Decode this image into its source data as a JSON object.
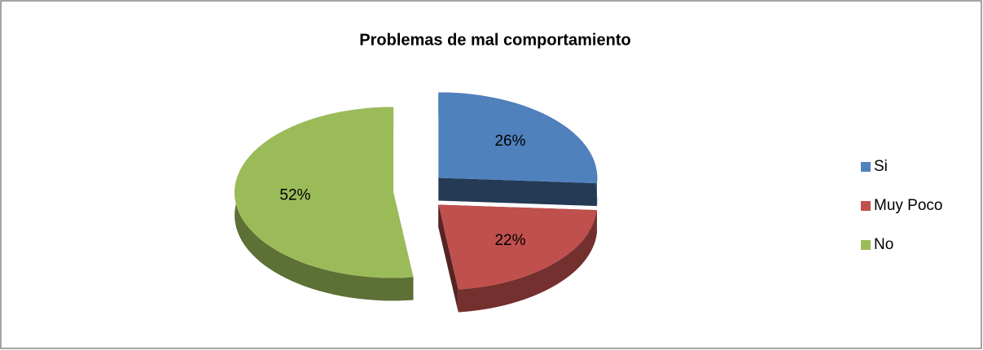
{
  "chart_data": {
    "type": "pie",
    "title": "Problemas de mal comportamiento",
    "categories": [
      "Si",
      "Muy Poco",
      "No"
    ],
    "values": [
      26,
      22,
      52
    ],
    "value_labels": [
      "26%",
      "22%",
      "52%"
    ],
    "colors": [
      "#4f81bd",
      "#c0504d",
      "#9bbb59"
    ],
    "legend": "right"
  }
}
